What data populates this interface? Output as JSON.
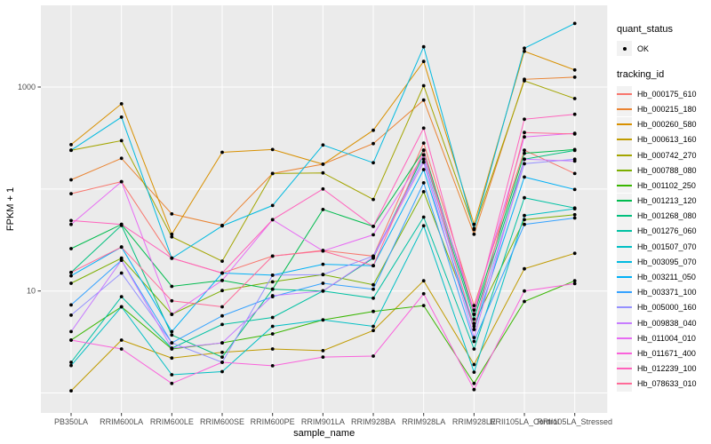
{
  "chart_data": {
    "type": "line",
    "xlabel": "sample_name",
    "ylabel": "FPKM + 1",
    "y_scale": "log10",
    "y_ticks": [
      {
        "value": 10,
        "label": "10"
      },
      {
        "value": 1000,
        "label": "1000"
      }
    ],
    "y_gridlines": [
      1,
      10,
      100,
      1000
    ],
    "ylim": [
      0.65,
      6300
    ],
    "legend_position": "right",
    "grid": true,
    "categories": [
      "PB350LA",
      "RRIM600LA",
      "RRIM600LE",
      "RRIM600SE",
      "RRIM600PE",
      "RRIM901LA",
      "RRIM928BA",
      "RRIM928LA",
      "RRIM928LE",
      "RRII105LA_Control",
      "RRII105LA_Stressed"
    ],
    "point_symbol": "filled-circle",
    "point_color": "#000000",
    "series": [
      {
        "name": "Hb_000175_610",
        "color": "#F8766D",
        "values": [
          90,
          118,
          21,
          15,
          22,
          25,
          22,
          282,
          7.2,
          240,
          142
        ]
      },
      {
        "name": "Hb_000215_180",
        "color": "#EA8331",
        "values": [
          123,
          200,
          57,
          44,
          142,
          175,
          279,
          745,
          36,
          1190,
          1250
        ]
      },
      {
        "name": "Hb_000260_580",
        "color": "#D89000",
        "values": [
          272,
          685,
          36,
          229,
          244,
          175,
          377,
          1780,
          45,
          2240,
          1470
        ]
      },
      {
        "name": "Hb_000613_160",
        "color": "#C09B00",
        "values": [
          1.05,
          3.3,
          2.2,
          2.5,
          2.7,
          2.6,
          4.1,
          12.6,
          1.9,
          16.5,
          23.4
        ]
      },
      {
        "name": "Hb_000742_270",
        "color": "#A3A500",
        "values": [
          240,
          298,
          34,
          19.6,
          142,
          144,
          79,
          1030,
          41,
          1150,
          770
        ]
      },
      {
        "name": "Hb_000788_080",
        "color": "#7CAE00",
        "values": [
          11.9,
          21,
          5.9,
          10.1,
          12.3,
          14.5,
          11.5,
          94,
          4.8,
          50,
          56
        ]
      },
      {
        "name": "Hb_001102_250",
        "color": "#39B600",
        "values": [
          3.3,
          7,
          2.7,
          3.1,
          3.8,
          5.2,
          6.3,
          7.2,
          1.24,
          7.9,
          12.6
        ]
      },
      {
        "name": "Hb_001213_120",
        "color": "#00BB4E",
        "values": [
          26,
          45,
          11.1,
          12.7,
          10.4,
          63,
          43,
          240,
          5.9,
          224,
          244
        ]
      },
      {
        "name": "Hb_001268_080",
        "color": "#00BF7D",
        "values": [
          15.2,
          44,
          3.7,
          2.25,
          10.4,
          10,
          21,
          216,
          5.3,
          196,
          239
        ]
      },
      {
        "name": "Hb_001276_060",
        "color": "#00C1A3",
        "values": [
          2.0,
          8.8,
          2.75,
          4.7,
          5.5,
          10,
          8.5,
          53,
          2.7,
          82,
          65
        ]
      },
      {
        "name": "Hb_001507_070",
        "color": "#00BFC4",
        "values": [
          1.86,
          7,
          1.51,
          1.62,
          4.5,
          5.2,
          4.5,
          43.6,
          1.6,
          55,
          64
        ]
      },
      {
        "name": "Hb_003095_070",
        "color": "#00BAE0",
        "values": [
          240,
          507,
          20.9,
          43.5,
          69,
          270,
          181,
          2480,
          40,
          2400,
          4200
        ]
      },
      {
        "name": "Hb_003211_050",
        "color": "#00B0F6",
        "values": [
          14.1,
          27,
          4.0,
          15,
          14.3,
          18.3,
          17.7,
          155,
          4.2,
          131,
          99
        ]
      },
      {
        "name": "Hb_003371_100",
        "color": "#35A2FF",
        "values": [
          7.3,
          20,
          3.1,
          5.7,
          8.8,
          11.9,
          10.4,
          115,
          3.2,
          45,
          52
        ]
      },
      {
        "name": "Hb_005000_160",
        "color": "#9590FF",
        "values": [
          5.8,
          15,
          3.1,
          2.0,
          14.3,
          14.5,
          22,
          196,
          4.5,
          177,
          196
        ]
      },
      {
        "name": "Hb_009838_040",
        "color": "#C77CFF",
        "values": [
          4.0,
          20,
          2.75,
          3.1,
          9,
          10,
          21.5,
          183,
          3.5,
          196,
          188
        ]
      },
      {
        "name": "Hb_011004_010",
        "color": "#E76BF3",
        "values": [
          45,
          118,
          5.9,
          12.7,
          50,
          24.7,
          35.6,
          216,
          6.5,
          324,
          352
        ]
      },
      {
        "name": "Hb_011671_400",
        "color": "#FA62DB",
        "values": [
          3.3,
          2.7,
          1.24,
          2.0,
          1.85,
          2.25,
          2.3,
          9.4,
          1.08,
          10,
          11.8
        ]
      },
      {
        "name": "Hb_012239_100",
        "color": "#FF62BC",
        "values": [
          49,
          45,
          21,
          15,
          50,
          100,
          43,
          395,
          5.9,
          483,
          540
        ]
      },
      {
        "name": "Hb_078633_010",
        "color": "#FF6A98",
        "values": [
          15.2,
          27,
          8,
          7,
          22,
          24.7,
          17.7,
          240,
          4.2,
          358,
          346
        ]
      }
    ]
  },
  "legend": {
    "quant_status": {
      "title": "quant_status",
      "items": [
        {
          "label": "OK",
          "symbol": "point-icon"
        }
      ]
    },
    "tracking_id": {
      "title": "tracking_id"
    }
  },
  "colors": {
    "panel_bg": "#EBEBEB",
    "grid": "#FFFFFF",
    "legend_key_bg": "#F2F2F2",
    "axis_text": "#4D4D4D",
    "tick_mark": "#333333",
    "title_text": "#000000"
  }
}
